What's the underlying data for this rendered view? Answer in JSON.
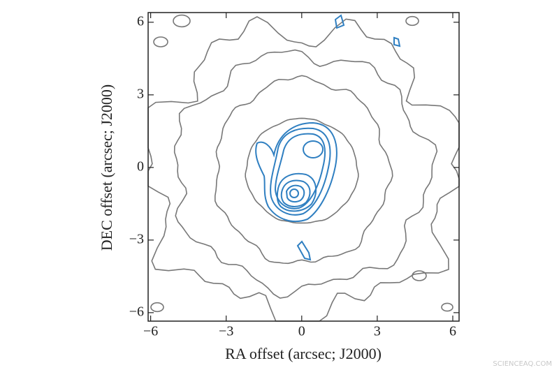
{
  "chart_data": {
    "type": "contour",
    "xlabel": "RA offset (arcsec; J2000)",
    "ylabel": "DEC offset (arcsec; J2000)",
    "xlim": [
      -6.1,
      6.25
    ],
    "ylim": [
      -6.35,
      6.4
    ],
    "xticks": [
      {
        "value": -6,
        "label": "−6"
      },
      {
        "value": -3,
        "label": "−3"
      },
      0,
      3,
      6
    ],
    "yticks": [
      {
        "value": -6,
        "label": "−6"
      },
      {
        "value": -3,
        "label": "−3"
      },
      0,
      3,
      6
    ]
  },
  "watermark": "SCIENCEAQ.COM"
}
